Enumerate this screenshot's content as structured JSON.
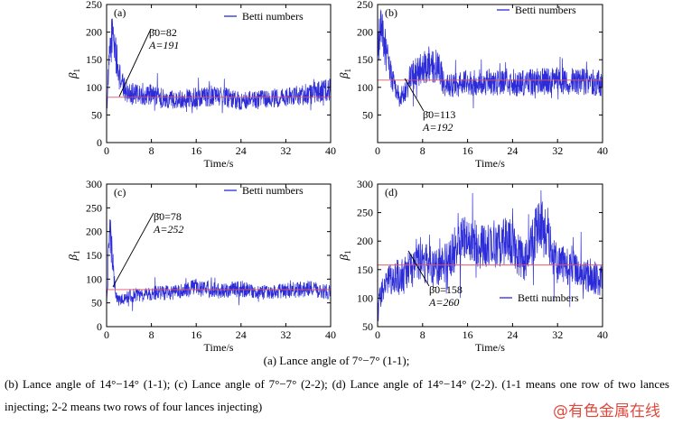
{
  "figure": {
    "caption_main": "(a) Lance angle of 7°−7° (1-1);",
    "caption_body": "(b) Lance angle of 14°−14° (1-1); (c) Lance angle of 7°−7° (2-2); (d) Lance angle of 14°−14° (2-2). (1-1 means one row of two lances injecting; 2-2 means two rows of four lances injecting)",
    "watermark": "@有色金属在线"
  },
  "chart_data": [
    {
      "type": "line",
      "panel_label": "(a)",
      "xlabel": "Time/s",
      "ylabel": "β1",
      "xlim": [
        0,
        40
      ],
      "ylim": [
        0,
        250
      ],
      "xticks": [
        0,
        8,
        16,
        24,
        32,
        40
      ],
      "yticks": [
        0,
        50,
        100,
        150,
        200,
        250
      ],
      "legend": "Betti numbers",
      "legend_position": "top-right",
      "mean_line": 82,
      "annotation": {
        "mean_text": "β̄0=82",
        "amp_text": "A=191",
        "mean": 82,
        "amp": 191
      },
      "series": [
        {
          "name": "Betti numbers",
          "x": [
            0,
            0.5,
            1,
            1.5,
            2,
            3,
            4,
            6,
            8,
            10,
            12,
            16,
            20,
            24,
            28,
            32,
            36,
            38,
            40
          ],
          "y": [
            62,
            150,
            200,
            175,
            130,
            100,
            90,
            85,
            88,
            80,
            78,
            82,
            85,
            75,
            78,
            82,
            88,
            92,
            95
          ]
        }
      ],
      "colors": {
        "series": "#2b2bd8",
        "mean": "#e05565"
      }
    },
    {
      "type": "line",
      "panel_label": "(b)",
      "xlabel": "Time/s",
      "ylabel": "β1",
      "xlim": [
        0,
        40
      ],
      "ylim": [
        0,
        250
      ],
      "xticks": [
        0,
        8,
        16,
        24,
        32,
        40
      ],
      "yticks": [
        50,
        100,
        150,
        200,
        250
      ],
      "legend": "Betti numbers",
      "legend_position": "top-right",
      "mean_line": 113,
      "annotation": {
        "mean_text": "β̄0=113",
        "amp_text": "A=192",
        "mean": 113,
        "amp": 192
      },
      "series": [
        {
          "name": "Betti numbers",
          "x": [
            0,
            0.5,
            1,
            2,
            3,
            4,
            5,
            6,
            8,
            10,
            11,
            12,
            14,
            16,
            20,
            24,
            28,
            32,
            36,
            40
          ],
          "y": [
            160,
            200,
            190,
            140,
            100,
            80,
            95,
            120,
            135,
            140,
            135,
            100,
            105,
            108,
            110,
            105,
            110,
            112,
            110,
            108
          ]
        }
      ],
      "colors": {
        "series": "#2b2bd8",
        "mean": "#e05565"
      }
    },
    {
      "type": "line",
      "panel_label": "(c)",
      "xlabel": "Time/s",
      "ylabel": "β1",
      "xlim": [
        0,
        40
      ],
      "ylim": [
        0,
        300
      ],
      "xticks": [
        0,
        8,
        16,
        24,
        32,
        40
      ],
      "yticks": [
        0,
        50,
        100,
        150,
        200,
        250,
        300
      ],
      "legend": "Betti numbers",
      "legend_position": "top-right",
      "mean_line": 78,
      "annotation": {
        "mean_text": "β̄0=78",
        "amp_text": "A=252",
        "mean": 78,
        "amp": 252
      },
      "series": [
        {
          "name": "Betti numbers",
          "x": [
            0,
            0.5,
            1,
            1.5,
            2,
            3,
            4,
            8,
            12,
            16,
            20,
            24,
            28,
            32,
            36,
            40
          ],
          "y": [
            40,
            200,
            150,
            80,
            55,
            60,
            65,
            70,
            72,
            82,
            75,
            80,
            72,
            75,
            80,
            72
          ]
        }
      ],
      "colors": {
        "series": "#2b2bd8",
        "mean": "#e05565"
      }
    },
    {
      "type": "line",
      "panel_label": "(d)",
      "xlabel": "Time/s",
      "ylabel": "β1",
      "xlim": [
        0,
        40
      ],
      "ylim": [
        50,
        300
      ],
      "xticks": [
        0,
        8,
        16,
        24,
        32,
        40
      ],
      "yticks": [
        50,
        100,
        150,
        200,
        250,
        300
      ],
      "legend": "Betti numbers",
      "legend_position": "bottom-right",
      "mean_line": 158,
      "annotation": {
        "mean_text": "β̄0=158",
        "amp_text": "A=260",
        "mean": 158,
        "amp": 260
      },
      "series": [
        {
          "name": "Betti numbers",
          "x": [
            0,
            2,
            4,
            6,
            8,
            10,
            12,
            14,
            16,
            18,
            20,
            22,
            24,
            26,
            28,
            29,
            30,
            32,
            34,
            36,
            38,
            40
          ],
          "y": [
            100,
            130,
            140,
            150,
            165,
            150,
            160,
            190,
            205,
            195,
            190,
            200,
            195,
            160,
            210,
            230,
            210,
            160,
            155,
            145,
            140,
            130
          ]
        }
      ],
      "colors": {
        "series": "#2b2bd8",
        "mean": "#e05565"
      }
    }
  ]
}
